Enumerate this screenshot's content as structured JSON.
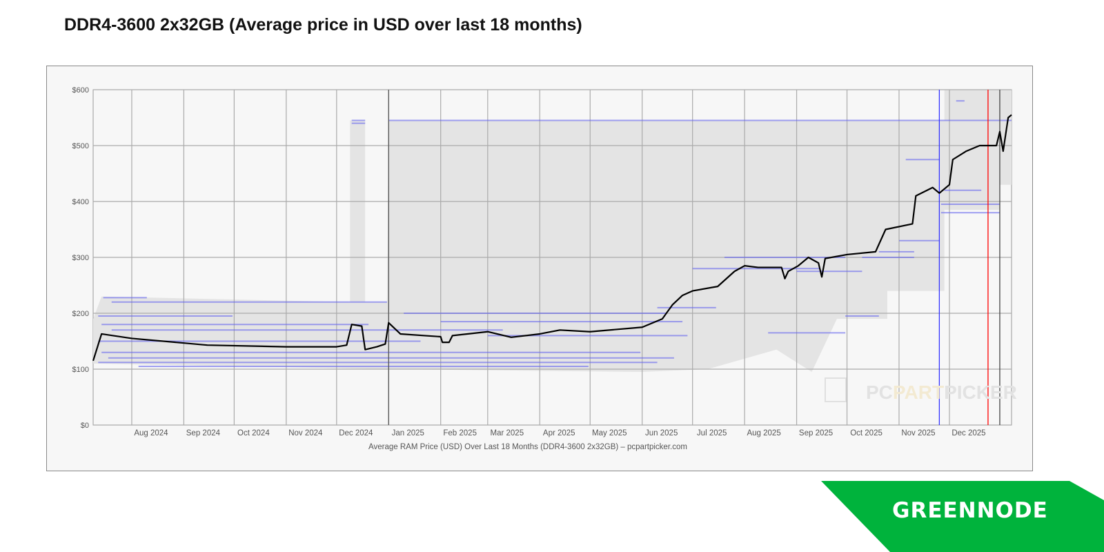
{
  "title": "DDR4-3600 2x32GB (Average price in USD over last 18 months)",
  "chart_data": {
    "type": "line",
    "title": "DDR4-3600 2x32GB (Average price in USD over last 18 months)",
    "xlabel": "Average RAM Price (USD) Over Last 18 Months (DDR4-3600 2x32GB) – pcpartpicker.com",
    "ylabel": "",
    "xlim": [
      "2024-07-09",
      "2026-01-07"
    ],
    "ylim": [
      0,
      600
    ],
    "grid": true,
    "y_ticks": [
      {
        "value": 0,
        "label": "$0"
      },
      {
        "value": 100,
        "label": "$100"
      },
      {
        "value": 200,
        "label": "$200"
      },
      {
        "value": 300,
        "label": "$300"
      },
      {
        "value": 400,
        "label": "$400"
      },
      {
        "value": 500,
        "label": "$500"
      },
      {
        "value": 600,
        "label": "$600"
      }
    ],
    "x_ticks": [
      {
        "date": "2024-08-01",
        "label": "Aug 2024"
      },
      {
        "date": "2024-09-01",
        "label": "Sep 2024"
      },
      {
        "date": "2024-10-01",
        "label": "Oct 2024"
      },
      {
        "date": "2024-11-01",
        "label": "Nov 2024"
      },
      {
        "date": "2024-12-01",
        "label": "Dec 2024"
      },
      {
        "date": "2025-01-01",
        "label": "Jan 2025"
      },
      {
        "date": "2025-02-01",
        "label": "Feb 2025"
      },
      {
        "date": "2025-03-01",
        "label": "Mar 2025"
      },
      {
        "date": "2025-04-01",
        "label": "Apr 2025"
      },
      {
        "date": "2025-05-01",
        "label": "May 2025"
      },
      {
        "date": "2025-06-01",
        "label": "Jun 2025"
      },
      {
        "date": "2025-07-01",
        "label": "Jul 2025"
      },
      {
        "date": "2025-08-01",
        "label": "Aug 2025"
      },
      {
        "date": "2025-09-01",
        "label": "Sep 2025"
      },
      {
        "date": "2025-10-01",
        "label": "Oct 2025"
      },
      {
        "date": "2025-11-01",
        "label": "Nov 2025"
      },
      {
        "date": "2025-12-01",
        "label": "Dec 2025"
      }
    ],
    "series": [
      {
        "color": "#000000",
        "points": [
          [
            "2024-07-09",
            115
          ],
          [
            "2024-07-14",
            163
          ],
          [
            "2024-08-01",
            155
          ],
          [
            "2024-08-31",
            147
          ],
          [
            "2024-09-15",
            143
          ],
          [
            "2024-11-01",
            140
          ],
          [
            "2024-12-01",
            140
          ],
          [
            "2024-12-07",
            143
          ],
          [
            "2024-12-10",
            180
          ],
          [
            "2024-12-16",
            177
          ],
          [
            "2024-12-18",
            135
          ],
          [
            "2024-12-25",
            140
          ],
          [
            "2024-12-30",
            145
          ],
          [
            "2025-01-01",
            183
          ],
          [
            "2025-01-08",
            163
          ],
          [
            "2025-02-01",
            158
          ],
          [
            "2025-02-02",
            148
          ],
          [
            "2025-02-06",
            148
          ],
          [
            "2025-02-08",
            160
          ],
          [
            "2025-03-01",
            167
          ],
          [
            "2025-03-15",
            157
          ],
          [
            "2025-04-01",
            163
          ],
          [
            "2025-04-13",
            170
          ],
          [
            "2025-05-01",
            167
          ],
          [
            "2025-06-01",
            175
          ],
          [
            "2025-06-13",
            190
          ],
          [
            "2025-06-19",
            215
          ],
          [
            "2025-06-25",
            232
          ],
          [
            "2025-07-01",
            240
          ],
          [
            "2025-07-16",
            248
          ],
          [
            "2025-07-26",
            275
          ],
          [
            "2025-08-01",
            285
          ],
          [
            "2025-08-09",
            282
          ],
          [
            "2025-08-23",
            282
          ],
          [
            "2025-08-25",
            262
          ],
          [
            "2025-08-27",
            275
          ],
          [
            "2025-09-02",
            285
          ],
          [
            "2025-09-08",
            300
          ],
          [
            "2025-09-14",
            290
          ],
          [
            "2025-09-16",
            265
          ],
          [
            "2025-09-18",
            298
          ],
          [
            "2025-10-01",
            305
          ],
          [
            "2025-10-18",
            310
          ],
          [
            "2025-10-24",
            350
          ],
          [
            "2025-11-09",
            360
          ],
          [
            "2025-11-11",
            410
          ],
          [
            "2025-11-21",
            425
          ],
          [
            "2025-11-25",
            415
          ],
          [
            "2025-12-01",
            430
          ],
          [
            "2025-12-03",
            475
          ],
          [
            "2025-12-11",
            490
          ],
          [
            "2025-12-19",
            500
          ],
          [
            "2025-12-29",
            500
          ],
          [
            "2025-12-31",
            525
          ],
          [
            "2026-01-02",
            490
          ],
          [
            "2026-01-05",
            550
          ],
          [
            "2026-01-07",
            555
          ]
        ]
      }
    ],
    "price_range": {
      "color": "#e4e4e4",
      "max": [
        [
          "2024-07-09",
          190
        ],
        [
          "2024-07-14",
          230
        ],
        [
          "2024-12-09",
          220
        ],
        [
          "2024-12-09",
          545
        ],
        [
          "2024-12-18",
          545
        ],
        [
          "2024-12-18",
          220
        ],
        [
          "2024-12-31",
          220
        ],
        [
          "2025-01-01",
          545
        ],
        [
          "2025-11-28",
          545
        ],
        [
          "2025-11-28",
          600
        ],
        [
          "2026-01-07",
          600
        ]
      ],
      "min": [
        [
          "2024-07-09",
          110
        ],
        [
          "2025-01-01",
          100
        ],
        [
          "2025-06-01",
          95
        ],
        [
          "2025-07-10",
          100
        ],
        [
          "2025-08-20",
          135
        ],
        [
          "2025-09-10",
          95
        ],
        [
          "2025-09-25",
          190
        ],
        [
          "2025-10-25",
          190
        ],
        [
          "2025-10-25",
          240
        ],
        [
          "2025-11-28",
          240
        ],
        [
          "2025-11-28",
          385
        ],
        [
          "2025-12-31",
          385
        ],
        [
          "2025-12-31",
          430
        ],
        [
          "2026-01-07",
          430
        ]
      ]
    },
    "listings": {
      "color": "#6666ee",
      "segments": [
        [
          "2024-07-15",
          "2024-08-10",
          228
        ],
        [
          "2024-07-20",
          "2024-12-31",
          220
        ],
        [
          "2024-07-12",
          "2024-09-30",
          195
        ],
        [
          "2024-07-14",
          "2024-12-20",
          180
        ],
        [
          "2024-07-20",
          "2025-03-10",
          170
        ],
        [
          "2024-07-12",
          "2025-01-20",
          150
        ],
        [
          "2024-07-14",
          "2025-05-31",
          130
        ],
        [
          "2024-07-18",
          "2025-06-20",
          120
        ],
        [
          "2024-07-12",
          "2025-06-10",
          112
        ],
        [
          "2024-08-05",
          "2025-04-30",
          105
        ],
        [
          "2024-12-10",
          "2024-12-18",
          545
        ],
        [
          "2024-12-10",
          "2024-12-18",
          540
        ],
        [
          "2025-01-01",
          "2026-01-07",
          545
        ],
        [
          "2025-01-10",
          "2025-06-15",
          200
        ],
        [
          "2025-02-01",
          "2025-06-25",
          185
        ],
        [
          "2025-03-01",
          "2025-06-28",
          160
        ],
        [
          "2025-06-10",
          "2025-07-15",
          210
        ],
        [
          "2025-07-01",
          "2025-09-15",
          280
        ],
        [
          "2025-07-20",
          "2025-09-30",
          300
        ],
        [
          "2025-08-15",
          "2025-09-30",
          165
        ],
        [
          "2025-09-01",
          "2025-10-10",
          275
        ],
        [
          "2025-09-30",
          "2025-10-20",
          195
        ],
        [
          "2025-10-10",
          "2025-11-10",
          300
        ],
        [
          "2025-10-20",
          "2025-11-10",
          310
        ],
        [
          "2025-11-01",
          "2025-11-25",
          330
        ],
        [
          "2025-11-05",
          "2025-11-25",
          475
        ],
        [
          "2025-11-26",
          "2025-12-31",
          395
        ],
        [
          "2025-11-26",
          "2025-12-31",
          380
        ],
        [
          "2025-11-28",
          "2025-12-20",
          420
        ],
        [
          "2025-12-05",
          "2025-12-10",
          580
        ]
      ]
    },
    "markers": [
      {
        "date": "2025-01-01",
        "color": "#555555"
      },
      {
        "date": "2025-11-25",
        "color": "#3333ff"
      },
      {
        "date": "2025-12-24",
        "color": "#ff0000"
      },
      {
        "date": "2025-12-31",
        "color": "#444444"
      }
    ]
  },
  "watermark": {
    "part1": "PC",
    "part2": "PART",
    "part3": "PICKER"
  },
  "brand": {
    "name": "GREENNODE",
    "color": "#00b33c"
  }
}
